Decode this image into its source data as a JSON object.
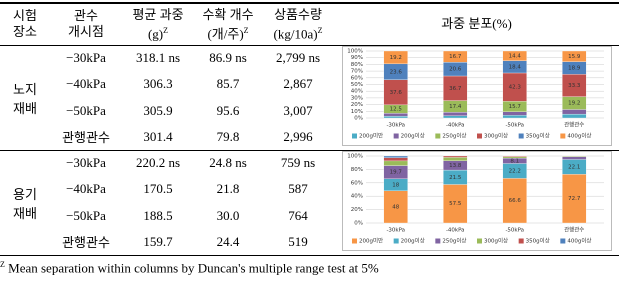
{
  "table": {
    "columns": [
      {
        "label": "시험\n장소"
      },
      {
        "label": "관수\n개시점"
      },
      {
        "label": "평균 과중",
        "unit": "(g)",
        "note": "Z"
      },
      {
        "label": "수확 개수",
        "unit": "(개/주)",
        "note": "Z"
      },
      {
        "label": "상품수량",
        "unit": "(kg/10a)",
        "note": "Z"
      },
      {
        "label": "과중 분포(%)"
      }
    ],
    "sections": [
      {
        "label": "노지\n재배",
        "rows": [
          [
            "−30kPa",
            "318.1 ns",
            "86.9 ns",
            "2,799 ns"
          ],
          [
            "−40kPa",
            "306.3",
            "85.7",
            "2,867"
          ],
          [
            "−50kPa",
            "305.9",
            "95.6",
            "3,007"
          ],
          [
            "관행관수",
            "301.4",
            "79.8",
            "2,996"
          ]
        ],
        "chart": {
          "type": "bar",
          "stacked": true,
          "categories": [
            "-30kPa",
            "-40kPa",
            "-50kPa",
            "관행관수"
          ],
          "series": [
            {
              "name": "200g미만",
              "color": "#4bacc6",
              "values": [
                2.8,
                3.3,
                4.0,
                5.8
              ]
            },
            {
              "name": "200g이상",
              "color": "#8064a2",
              "values": [
                4.3,
                5.3,
                5.2,
                6.9
              ]
            },
            {
              "name": "250g이상",
              "color": "#9bbb59",
              "values": [
                12.5,
                17.4,
                15.7,
                19.2
              ]
            },
            {
              "name": "300g이상",
              "color": "#c0504d",
              "values": [
                37.6,
                36.7,
                42.3,
                33.3
              ]
            },
            {
              "name": "350g이상",
              "color": "#4f81bd",
              "values": [
                23.6,
                20.6,
                18.4,
                18.9
              ]
            },
            {
              "name": "400g이상",
              "color": "#f79646",
              "values": [
                19.2,
                16.7,
                14.4,
                15.9
              ]
            }
          ],
          "ylim": [
            0,
            100
          ],
          "yticks": [
            {
              "value": 0,
              "label": "0%"
            },
            {
              "value": 10,
              "label": "10%"
            },
            {
              "value": 20,
              "label": "20%"
            },
            {
              "value": 30,
              "label": "30%"
            },
            {
              "value": 40,
              "label": "40%"
            },
            {
              "value": 50,
              "label": "50%"
            },
            {
              "value": 60,
              "label": "60%"
            },
            {
              "value": 70,
              "label": "70%"
            },
            {
              "value": 80,
              "label": "80%"
            },
            {
              "value": 90,
              "label": "90%"
            },
            {
              "value": 100,
              "label": "100%"
            }
          ],
          "grid": true
        }
      },
      {
        "label": "용기\n재배",
        "rows": [
          [
            "−30kPa",
            "220.2 ns",
            "24.8 ns",
            "759 ns"
          ],
          [
            "−40kPa",
            "170.5",
            "21.8",
            "587"
          ],
          [
            "−50kPa",
            "188.5",
            "30.0",
            "764"
          ],
          [
            "관행관수",
            "159.7",
            "24.4",
            "519"
          ]
        ],
        "chart": {
          "type": "bar",
          "stacked": true,
          "categories": [
            "-30kPa",
            "-40kPa",
            "-50kPa",
            "관행관수"
          ],
          "series": [
            {
              "name": "200g미만",
              "color": "#f79646",
              "values": [
                48.0,
                57.5,
                66.6,
                72.7
              ]
            },
            {
              "name": "200g이상",
              "color": "#4bacc6",
              "values": [
                18.0,
                21.5,
                22.2,
                22.1
              ]
            },
            {
              "name": "250g이상",
              "color": "#8064a2",
              "values": [
                19.7,
                13.8,
                8.1,
                4.3
              ]
            },
            {
              "name": "300g이상",
              "color": "#9bbb59",
              "values": [
                7.0,
                5.1,
                2.1,
                0.9
              ]
            },
            {
              "name": "350g이상",
              "color": "#c0504d",
              "values": [
                4.8,
                2.1,
                1.0,
                0
              ]
            },
            {
              "name": "400g이상",
              "color": "#4f81bd",
              "values": [
                2.5,
                0,
                0,
                0
              ]
            }
          ],
          "ylim": [
            0,
            100
          ],
          "yticks": [
            {
              "value": 0,
              "label": "0%"
            },
            {
              "value": 20,
              "label": "20%"
            },
            {
              "value": 40,
              "label": "40%"
            },
            {
              "value": 60,
              "label": "60%"
            },
            {
              "value": 80,
              "label": "80%"
            },
            {
              "value": 100,
              "label": "100%"
            }
          ],
          "grid": true
        }
      }
    ],
    "footnote": {
      "mark": "Z",
      "text": "Mean separation within columns by Duncan's multiple range test at 5%"
    }
  }
}
